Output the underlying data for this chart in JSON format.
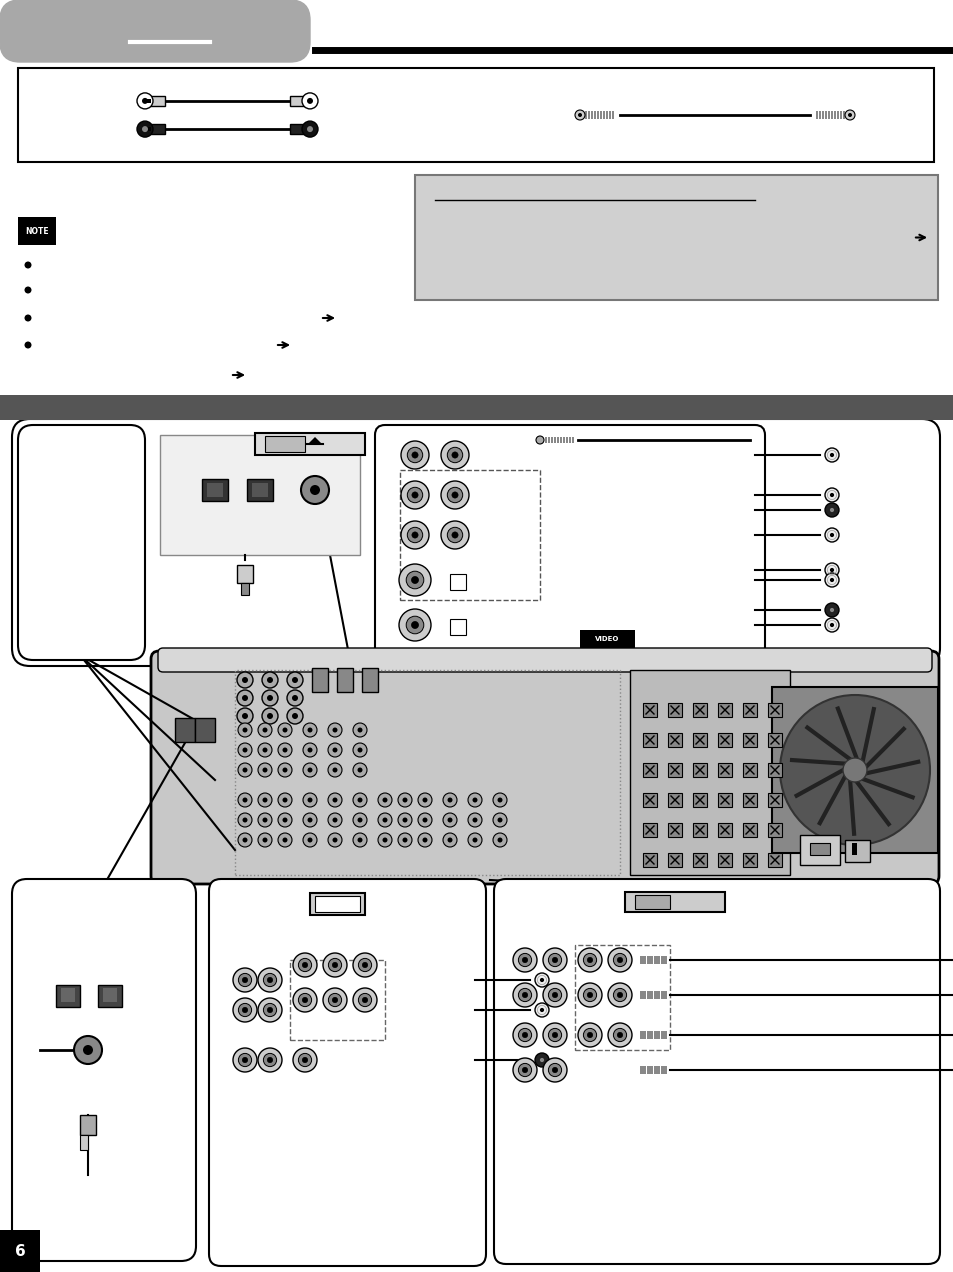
{
  "bg_color": "#ffffff",
  "header_gray": "#a8a8a8",
  "section_bar_color": "#555555",
  "note_box_color": "#d0d0d0",
  "page_width": 9.54,
  "page_height": 12.72,
  "dpi": 100
}
